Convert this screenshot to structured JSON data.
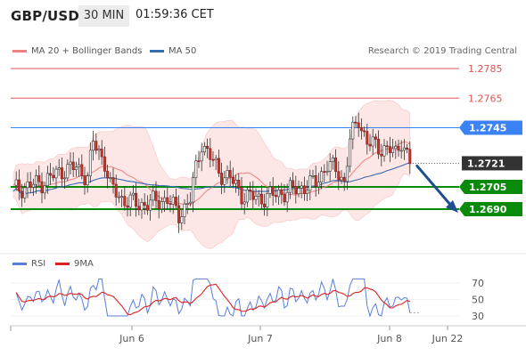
{
  "header": {
    "pair": "GBP/USD",
    "timeframe": "30 MIN",
    "time": "01:59:36 CET"
  },
  "legend": {
    "bollinger": {
      "label": "MA 20 + Bollinger Bands",
      "color": "#f08080"
    },
    "ma50": {
      "label": "MA 50",
      "color": "#3b6bb0"
    },
    "rsi": {
      "label": "RSI",
      "color": "#5a7fd6"
    },
    "rsi_ma": {
      "label": "9MA",
      "color": "#e02020"
    }
  },
  "credit": "Research © 2019 Trading Central",
  "chart_data": {
    "type": "candlestick",
    "price_levels": [
      {
        "label": "1.2785",
        "value": 1.2785,
        "kind": "resistance",
        "color": "#e05555"
      },
      {
        "label": "1.2765",
        "value": 1.2765,
        "kind": "resistance",
        "color": "#e05555"
      },
      {
        "label": "1.2745",
        "value": 1.2745,
        "kind": "pivot",
        "color": "#3b82f6"
      },
      {
        "label": "1.2721",
        "value": 1.2721,
        "kind": "last",
        "color": "#333333"
      },
      {
        "label": "1.2705",
        "value": 1.2705,
        "kind": "support",
        "color": "#0a8a0a"
      },
      {
        "label": "1.2690",
        "value": 1.269,
        "kind": "support",
        "color": "#0a8a0a"
      }
    ],
    "ylim": [
      1.267,
      1.28
    ],
    "x_ticks": [
      "Jun 6",
      "Jun 7",
      "Jun 8",
      "Jun 22"
    ],
    "rsi_ticks": [
      70,
      50,
      30
    ],
    "rsi_range": [
      20,
      80
    ],
    "forecast": {
      "from": 1.2721,
      "to": 1.269,
      "direction": "down"
    }
  }
}
